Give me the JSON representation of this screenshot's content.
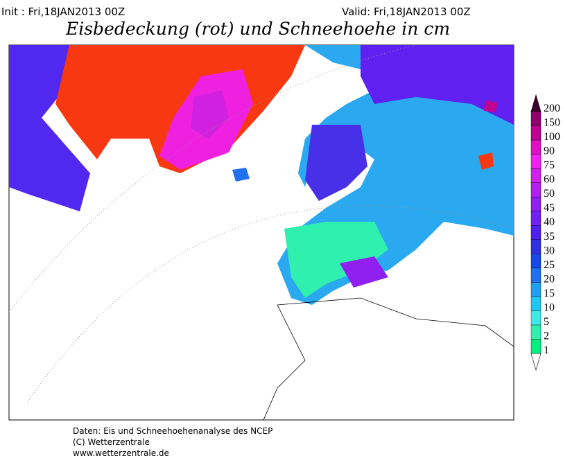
{
  "header": {
    "init": "Init : Fri,18JAN2013 00Z",
    "valid": "Valid: Fri,18JAN2013 00Z",
    "title": "Eisbedeckung (rot) und Schneehoehe in cm"
  },
  "colorbar": {
    "levels": [
      1,
      2,
      5,
      10,
      15,
      20,
      25,
      30,
      35,
      40,
      45,
      50,
      60,
      75,
      90,
      100,
      150,
      200
    ],
    "colors": [
      "#00f080",
      "#30f0b0",
      "#40e8e8",
      "#20c8f0",
      "#20a0f0",
      "#2070f0",
      "#1848e8",
      "#3030e0",
      "#5020f0",
      "#7020f0",
      "#9020f0",
      "#b020f0",
      "#d020f0",
      "#f020f0",
      "#e010c0",
      "#c00090",
      "#900070",
      "#600050"
    ],
    "top_color": "#400030"
  },
  "footer": [
    "Daten: Eis und Schneehoehenanalyse des NCEP",
    "(C) Wetterzentrale",
    "www.wetterzentrale.de"
  ]
}
